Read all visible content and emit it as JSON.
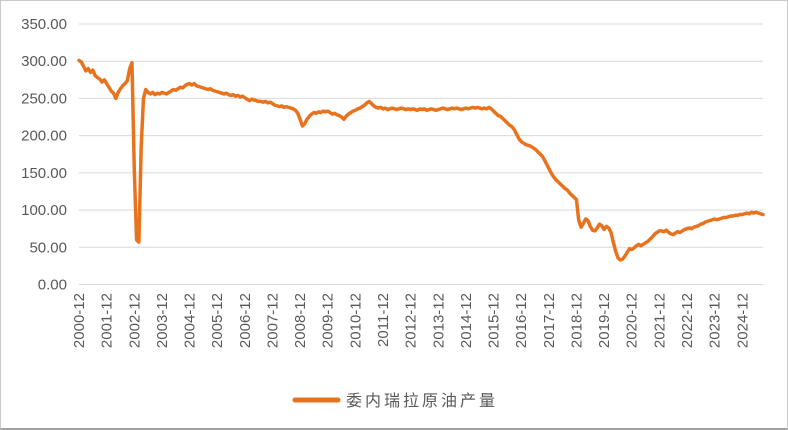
{
  "chart_data": {
    "type": "line",
    "title": "",
    "xlabel": "",
    "ylabel": "",
    "ylim": [
      0,
      350
    ],
    "grid": "horizontal",
    "legend_position": "bottom-center",
    "y_ticks": [
      0,
      50,
      100,
      150,
      200,
      250,
      300,
      350
    ],
    "y_tick_labels": [
      "0.00",
      "50.00",
      "100.00",
      "150.00",
      "200.00",
      "250.00",
      "300.00",
      "350.00"
    ],
    "x_tick_labels": [
      "2000-12",
      "2001-12",
      "2002-12",
      "2003-12",
      "2004-12",
      "2005-12",
      "2006-12",
      "2007-12",
      "2008-12",
      "2009-12",
      "2010-12",
      "2011-12",
      "2012-12",
      "2013-12",
      "2014-12",
      "2015-12",
      "2016-12",
      "2017-12",
      "2018-12",
      "2019-12",
      "2020-12",
      "2021-12",
      "2022-12",
      "2023-12",
      "2024-12"
    ],
    "x_monthly_start": "2000-12",
    "x_monthly_end": "2025-09",
    "colors": {
      "line": "#E8731E",
      "grid": "#D9D9D9",
      "text": "#595959",
      "background": "#FFFFFF"
    },
    "series": [
      {
        "name": "委内瑞拉原油产量",
        "color": "#E8731E",
        "values": [
          301,
          299,
          293,
          287,
          290,
          285,
          288,
          281,
          278,
          276,
          272,
          275,
          270,
          265,
          260,
          257,
          250,
          258,
          263,
          267,
          270,
          274,
          290,
          298,
          155,
          60,
          57,
          185,
          250,
          262,
          258,
          256,
          258,
          255,
          257,
          256,
          258,
          257,
          256,
          258,
          260,
          262,
          261,
          263,
          265,
          264,
          267,
          269,
          270,
          268,
          270,
          267,
          266,
          265,
          264,
          263,
          262,
          263,
          261,
          260,
          259,
          258,
          257,
          256,
          257,
          255,
          254,
          255,
          253,
          254,
          252,
          253,
          251,
          249,
          247,
          249,
          248,
          247,
          246,
          246,
          245,
          246,
          244,
          245,
          243,
          241,
          240,
          239,
          240,
          238,
          239,
          238,
          237,
          236,
          234,
          230,
          222,
          213,
          216,
          222,
          226,
          229,
          231,
          230,
          232,
          231,
          233,
          232,
          233,
          231,
          229,
          230,
          228,
          227,
          225,
          222,
          226,
          229,
          231,
          233,
          234,
          236,
          237,
          239,
          241,
          244,
          246,
          243,
          240,
          238,
          237,
          238,
          236,
          237,
          235,
          236,
          237,
          236,
          235,
          236,
          237,
          236,
          235,
          236,
          235,
          236,
          235,
          234,
          236,
          235,
          236,
          234,
          235,
          236,
          235,
          234,
          235,
          236,
          237,
          236,
          235,
          236,
          237,
          236,
          237,
          236,
          235,
          236,
          237,
          236,
          237,
          238,
          237,
          238,
          237,
          236,
          237,
          236,
          238,
          236,
          233,
          230,
          227,
          226,
          223,
          220,
          217,
          214,
          212,
          208,
          202,
          196,
          192,
          190,
          188,
          187,
          186,
          184,
          182,
          179,
          176,
          173,
          168,
          162,
          156,
          150,
          145,
          141,
          138,
          135,
          132,
          129,
          127,
          123,
          120,
          117,
          114,
          86,
          77,
          82,
          88,
          86,
          78,
          73,
          72,
          76,
          81,
          79,
          74,
          78,
          76,
          70,
          57,
          45,
          36,
          33,
          34,
          38,
          43,
          48,
          47,
          49,
          52,
          54,
          52,
          54,
          56,
          58,
          61,
          64,
          68,
          70,
          72,
          72,
          71,
          73,
          70,
          68,
          67,
          69,
          71,
          70,
          72,
          74,
          75,
          76,
          75,
          77,
          78,
          79,
          81,
          82,
          84,
          85,
          86,
          87,
          88,
          87,
          88,
          89,
          90,
          90,
          91,
          92,
          92,
          93,
          93,
          94,
          94,
          95,
          96,
          95,
          97,
          96,
          97,
          96,
          95,
          94
        ]
      }
    ],
    "legend": {
      "label": "委内瑞拉原油产量"
    }
  }
}
